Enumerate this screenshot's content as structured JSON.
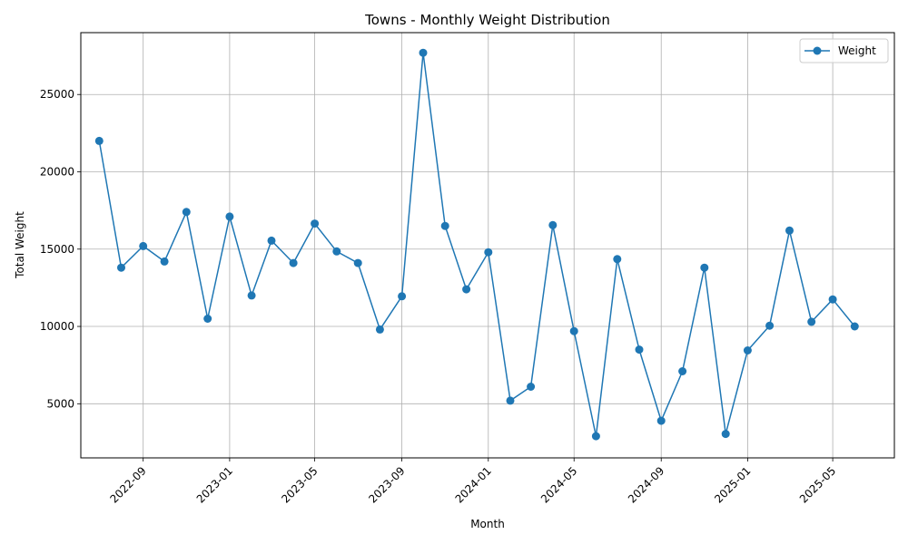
{
  "chart_data": {
    "type": "line",
    "title": "Towns - Monthly Weight Distribution",
    "xlabel": "Month",
    "ylabel": "Total Weight",
    "grid": true,
    "legend_position": "top-right",
    "x_ticks": [
      "2022-09",
      "2023-01",
      "2023-05",
      "2023-09",
      "2024-01",
      "2024-05",
      "2024-09",
      "2025-01",
      "2025-05"
    ],
    "y_ticks": [
      5000,
      10000,
      15000,
      20000,
      25000
    ],
    "ylim": [
      1500,
      29000
    ],
    "xlim": [
      "2022-06-05",
      "2025-07-27"
    ],
    "series": [
      {
        "name": "Weight",
        "color": "#1f77b4",
        "x": [
          "2022-07",
          "2022-08",
          "2022-09",
          "2022-10",
          "2022-11",
          "2022-12",
          "2023-01",
          "2023-02",
          "2023-03",
          "2023-04",
          "2023-05",
          "2023-06",
          "2023-07",
          "2023-08",
          "2023-09",
          "2023-10",
          "2023-11",
          "2023-12",
          "2024-01",
          "2024-02",
          "2024-03",
          "2024-04",
          "2024-05",
          "2024-06",
          "2024-07",
          "2024-08",
          "2024-09",
          "2024-10",
          "2024-11",
          "2024-12",
          "2025-01",
          "2025-02",
          "2025-03",
          "2025-04",
          "2025-05",
          "2025-06"
        ],
        "values": [
          22000,
          13800,
          15200,
          14200,
          17400,
          10500,
          17100,
          12000,
          15550,
          14100,
          16650,
          14850,
          14100,
          9800,
          11950,
          27700,
          16500,
          12400,
          14800,
          5200,
          6100,
          16550,
          9700,
          2900,
          14350,
          8500,
          3900,
          7100,
          13800,
          3050,
          8450,
          10050,
          16200,
          10300,
          11750,
          10000
        ]
      }
    ]
  }
}
